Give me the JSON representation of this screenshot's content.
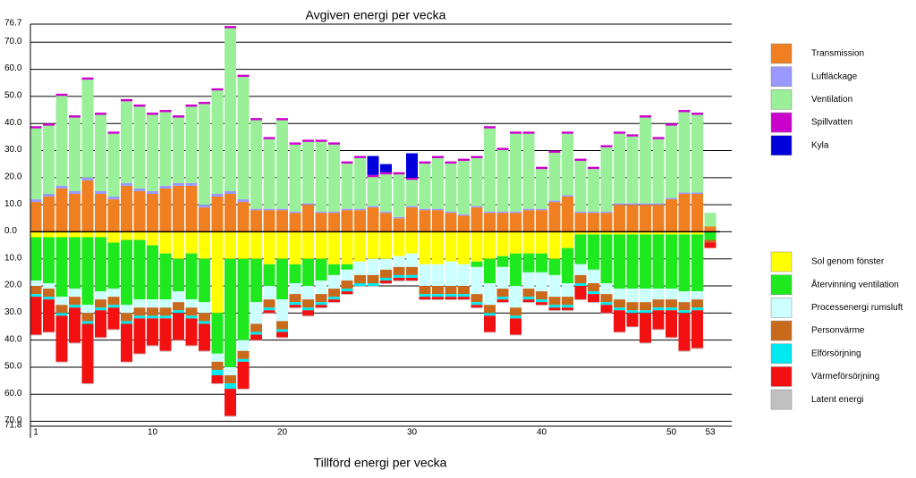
{
  "chart_data": {
    "type": "bar",
    "title": "Avgiven energi per vecka",
    "xlabel": "Tillförd energi per vecka",
    "stacked": true,
    "grid": true,
    "categories": [
      "1",
      null,
      null,
      null,
      null,
      null,
      null,
      null,
      null,
      "10",
      null,
      null,
      null,
      null,
      null,
      null,
      null,
      null,
      null,
      "20",
      null,
      null,
      null,
      null,
      null,
      null,
      null,
      null,
      null,
      "30",
      null,
      null,
      null,
      null,
      null,
      null,
      null,
      null,
      null,
      "40",
      null,
      null,
      null,
      null,
      null,
      null,
      null,
      null,
      null,
      "50",
      null,
      null,
      "53"
    ],
    "ylim": [
      -71.8,
      76.7
    ],
    "yticks": [
      76.7,
      {
        "value": 70,
        "label": "70.0"
      },
      {
        "value": 60,
        "label": "60.0"
      },
      {
        "value": 50,
        "label": "50.0"
      },
      {
        "value": 40,
        "label": "40.0"
      },
      {
        "value": 30,
        "label": "30.0"
      },
      {
        "value": 20,
        "label": "20.0"
      },
      {
        "value": 10,
        "label": "10.0"
      },
      {
        "value": 0,
        "label": "0.0"
      },
      {
        "value": -10,
        "label": "10.0"
      },
      {
        "value": -20,
        "label": "20.0"
      },
      {
        "value": -30,
        "label": "30.0"
      },
      {
        "value": -40,
        "label": "40.0"
      },
      {
        "value": -50,
        "label": "50.0"
      },
      {
        "value": -60,
        "label": "60.0"
      },
      {
        "value": -70,
        "label": "70.0"
      },
      {
        "value": -71.8,
        "label": "71.8"
      }
    ],
    "series": [
      {
        "name": "Transmission",
        "color": "#f07f22",
        "values": [
          11,
          13,
          16,
          14,
          19,
          14,
          12,
          17,
          15,
          14,
          16,
          17,
          17,
          9,
          13,
          14,
          11,
          8,
          8,
          8,
          7,
          10,
          7,
          7,
          8,
          8,
          9,
          7,
          5,
          9,
          8,
          8,
          7,
          6,
          9,
          7,
          7,
          7,
          8,
          8,
          11,
          13,
          7,
          7,
          7,
          10,
          10,
          10,
          10,
          12,
          14,
          14,
          2
        ]
      },
      {
        "name": "Luftläckage",
        "color": "#9999ff",
        "values": [
          1,
          1,
          1,
          1,
          1,
          1,
          1,
          1,
          1,
          1,
          1,
          1,
          1,
          1,
          1,
          1,
          1,
          0.5,
          0.5,
          0.5,
          0.5,
          0.5,
          0.5,
          0.5,
          0.5,
          0.5,
          0.5,
          0.5,
          0.5,
          0.5,
          0.5,
          0.5,
          0.5,
          0.5,
          0.5,
          0.5,
          0.5,
          0.5,
          0.5,
          0.5,
          0.5,
          0.5,
          0.5,
          0.5,
          0.5,
          0.5,
          0.5,
          0.5,
          0.5,
          0.5,
          0.5,
          0.5,
          0
        ]
      },
      {
        "name": "Ventilation",
        "color": "#99f099",
        "values": [
          26.2,
          25.2,
          33.2,
          27.2,
          36.2,
          28.2,
          23.2,
          30.2,
          30.2,
          28.2,
          27.2,
          24.2,
          28.2,
          37.2,
          38.2,
          60.2,
          45.2,
          32.7,
          25.7,
          32.7,
          24.7,
          22.7,
          25.7,
          24.7,
          16.7,
          18.7,
          10.7,
          13.7,
          15.7,
          9.7,
          16.7,
          18.7,
          17.7,
          19.7,
          17.7,
          30.7,
          22.7,
          28.7,
          27.7,
          14.7,
          17.7,
          22.7,
          18.7,
          15.7,
          23.7,
          25.7,
          24.7,
          31.7,
          23.7,
          26.7,
          29.7,
          28.7,
          5
        ]
      },
      {
        "name": "Spillvatten",
        "color": "#cc00cc",
        "values": [
          0.8,
          0.8,
          0.8,
          0.8,
          0.8,
          0.8,
          0.8,
          0.8,
          0.8,
          0.8,
          0.8,
          0.8,
          0.8,
          0.8,
          0.8,
          0.8,
          0.8,
          0.8,
          0.8,
          0.8,
          0.8,
          0.8,
          0.8,
          0.8,
          0.8,
          0.8,
          0.8,
          0.8,
          0.8,
          0.8,
          0.8,
          0.8,
          0.8,
          0.8,
          0.8,
          0.8,
          0.8,
          0.8,
          0.8,
          0.8,
          0.8,
          0.8,
          0.8,
          0.8,
          0.8,
          0.8,
          0.8,
          0.8,
          0.8,
          0.8,
          0.8,
          0.8,
          0
        ]
      },
      {
        "name": "Kyla",
        "color": "#0000dd",
        "values": [
          0,
          0,
          0,
          0,
          0,
          0,
          0,
          0,
          0,
          0,
          0,
          0,
          0,
          0,
          0,
          0,
          0,
          0,
          0,
          0,
          0,
          0,
          0,
          0,
          0,
          0,
          7,
          3,
          0,
          9,
          0,
          0,
          0,
          0,
          0,
          0,
          0,
          0,
          0,
          0,
          0,
          0,
          0,
          0,
          0,
          0,
          0,
          0,
          0,
          0,
          0,
          0,
          0
        ]
      },
      {
        "name": "Sol genom fönster",
        "color": "#ffff00",
        "values": [
          -2,
          -2,
          -2,
          -2,
          -2,
          -2,
          -4,
          -3,
          -3,
          -5,
          -8,
          -10,
          -8,
          -10,
          -30,
          -10,
          -10,
          -10,
          -12,
          -10,
          -12,
          -10,
          -10,
          -12,
          -12,
          -11,
          -10,
          -10,
          -9,
          -8,
          -12,
          -12,
          -11,
          -12,
          -11,
          -10,
          -9,
          -8,
          -8,
          -8,
          -10,
          -6,
          -1,
          -1,
          -1,
          -1,
          -1,
          -1,
          -1,
          -1,
          -1,
          -1,
          0
        ]
      },
      {
        "name": "Återvinning ventilation",
        "color": "#1ee81e",
        "values": [
          -16,
          -17,
          -22,
          -19,
          -25,
          -20,
          -17,
          -24,
          -22,
          -20,
          -17,
          -12,
          -17,
          -16,
          -15,
          -40,
          -30,
          -16,
          -8,
          -15,
          -7,
          -10,
          -8,
          -4,
          -2,
          0,
          0,
          0,
          0,
          0,
          0,
          0,
          0,
          0,
          -2,
          -9,
          -4,
          -12,
          -7,
          -7,
          -6,
          -13,
          -11,
          -13,
          -18,
          -20,
          -20,
          -20,
          -20,
          -20,
          -21,
          -21,
          -3
        ]
      },
      {
        "name": "Processenergi rumsluft",
        "color": "#ccffff",
        "values": [
          -2,
          -2,
          -3,
          -3,
          -3,
          -3,
          -3,
          -3,
          -3,
          -3,
          -3,
          -4,
          -3,
          -4,
          -3,
          -3,
          -4,
          -8,
          -5,
          -8,
          -4,
          -5,
          -5,
          -5,
          -4,
          -5,
          -6,
          -4,
          -4,
          -5,
          -8,
          -8,
          -9,
          -8,
          -10,
          -8,
          -8,
          -8,
          -6,
          -7,
          -8,
          -5,
          -4,
          -5,
          -4,
          -4,
          -5,
          -5,
          -4,
          -4,
          -4,
          -3,
          0
        ]
      },
      {
        "name": "Personvärme",
        "color": "#c8691c",
        "values": [
          -3,
          -3,
          -3,
          -3,
          -3,
          -3,
          -3,
          -3,
          -3,
          -3,
          -3,
          -3,
          -3,
          -3,
          -3,
          -3,
          -3,
          -3,
          -3,
          -3,
          -3,
          -3,
          -3,
          -3,
          -3,
          -3,
          -3,
          -3,
          -3,
          -3,
          -3,
          -3,
          -3,
          -3,
          -3,
          -3,
          -3,
          -3,
          -3,
          -3,
          -3,
          -3,
          -3,
          -3,
          -3,
          -3,
          -3,
          -3,
          -3,
          -3,
          -3,
          -3,
          -1
        ]
      },
      {
        "name": "Elförsörjning",
        "color": "#00e8f0",
        "values": [
          -1,
          -1,
          -1,
          -1,
          -1,
          -1,
          -1,
          -1,
          -1,
          -1,
          -1,
          -1,
          -1,
          -1,
          -2,
          -2,
          -1,
          -1,
          -1,
          -1,
          -1,
          -1,
          -1,
          -1,
          -1,
          -1,
          -1,
          -1,
          -1,
          -1,
          -1,
          -1,
          -1,
          -1,
          -1,
          -1,
          -1,
          -1,
          -1,
          -1,
          -1,
          -1,
          -1,
          -1,
          -1,
          -1,
          -1,
          -1,
          -1,
          -1,
          -1,
          -1,
          0
        ]
      },
      {
        "name": "Värmeförsörjning",
        "color": "#f21010",
        "values": [
          -14,
          -12,
          -17,
          -13,
          -22,
          -10,
          -8,
          -14,
          -13,
          -10,
          -12,
          -10,
          -10,
          -10,
          -3,
          -10,
          -10,
          -2,
          -1,
          -2,
          -1,
          -2,
          -1,
          -1,
          -1,
          0,
          0,
          -1,
          -1,
          -1,
          -1,
          -1,
          -1,
          -1,
          -1,
          -6,
          -1,
          -6,
          -1,
          -1,
          -1,
          -1,
          -5,
          -3,
          -3,
          -8,
          -5,
          -11,
          -7,
          -10,
          -14,
          -14,
          -2
        ]
      },
      {
        "name": "Latent energi",
        "color": "#c0c0c0",
        "values": [
          -0.3,
          -0.3,
          -0.3,
          -0.3,
          -0.3,
          -0.3,
          -0.3,
          -0.3,
          -0.3,
          -0.3,
          -0.3,
          -0.3,
          -0.3,
          -0.3,
          -0.3,
          -0.3,
          -0.3,
          -0.3,
          -0.3,
          -0.3,
          -0.3,
          -0.3,
          -0.3,
          -0.3,
          -0.3,
          -0.3,
          -0.3,
          -0.3,
          -0.3,
          -0.3,
          -0.3,
          -0.3,
          -0.3,
          -0.3,
          -0.3,
          -0.3,
          -0.3,
          -0.3,
          -0.3,
          -0.3,
          -0.3,
          -0.3,
          -0.3,
          -0.3,
          -0.3,
          -0.3,
          -0.3,
          -0.3,
          -0.3,
          -0.3,
          -0.3,
          -0.3,
          0
        ]
      }
    ]
  }
}
